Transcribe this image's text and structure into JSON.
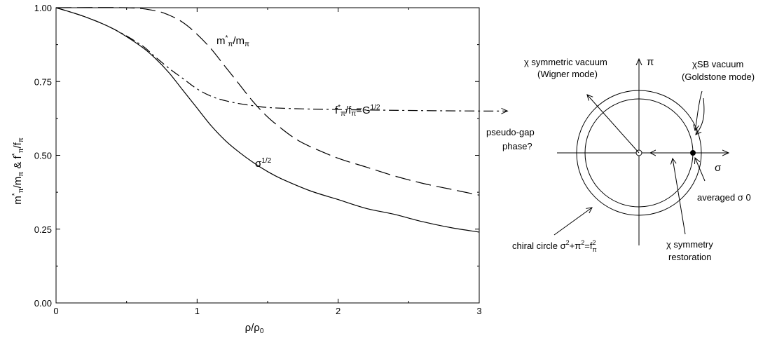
{
  "chart_data": {
    "type": "line",
    "xlabel": "ρ/ρ",
    "xlabel_sub": "0",
    "ylabel": "m*π/mπ & f*π/fπ",
    "xlim": [
      0,
      3
    ],
    "ylim": [
      0,
      1
    ],
    "x_ticks": [
      "0",
      "1",
      "2",
      "3"
    ],
    "y_ticks": [
      "0.00",
      "0.25",
      "0.50",
      "0.75",
      "1.00"
    ],
    "grid": false,
    "series": [
      {
        "name": "m*π/mπ",
        "style": "long-dash",
        "x": [
          0,
          0.5,
          0.7,
          0.8,
          0.9,
          1.0,
          1.1,
          1.2,
          1.3,
          1.4,
          1.5,
          1.6,
          1.7,
          1.8,
          2.0,
          2.2,
          2.4,
          2.6,
          2.8,
          3.0
        ],
        "y": [
          1.0,
          1.0,
          0.99,
          0.975,
          0.95,
          0.91,
          0.86,
          0.8,
          0.74,
          0.68,
          0.63,
          0.59,
          0.555,
          0.53,
          0.49,
          0.46,
          0.43,
          0.405,
          0.385,
          0.365
        ]
      },
      {
        "name": "f*π/fπ=G1/2",
        "style": "dash-dot",
        "x": [
          0,
          0.2,
          0.4,
          0.6,
          0.7,
          0.8,
          0.9,
          1.0,
          1.1,
          1.2,
          1.3,
          1.4,
          1.5,
          1.7,
          2.0,
          2.5,
          3.0,
          3.2
        ],
        "y": [
          1.0,
          0.97,
          0.93,
          0.875,
          0.835,
          0.795,
          0.76,
          0.725,
          0.7,
          0.685,
          0.675,
          0.668,
          0.662,
          0.658,
          0.655,
          0.652,
          0.65,
          0.65
        ]
      },
      {
        "name": "σ1/2",
        "style": "solid",
        "x": [
          0,
          0.2,
          0.4,
          0.6,
          0.7,
          0.8,
          0.9,
          1.0,
          1.1,
          1.2,
          1.3,
          1.4,
          1.5,
          1.6,
          1.8,
          2.0,
          2.2,
          2.4,
          2.6,
          2.8,
          3.0
        ],
        "y": [
          1.0,
          0.97,
          0.93,
          0.87,
          0.83,
          0.78,
          0.72,
          0.66,
          0.6,
          0.55,
          0.51,
          0.475,
          0.445,
          0.42,
          0.38,
          0.35,
          0.32,
          0.3,
          0.275,
          0.255,
          0.24
        ]
      }
    ],
    "annotations": [
      {
        "text": "m*π/mπ"
      },
      {
        "text": "f*π/fπ=G1/2"
      },
      {
        "text": "σ1/2"
      }
    ]
  },
  "diagram": {
    "axis_pi": "π",
    "axis_sigma": "σ",
    "labels": {
      "sym_vacuum_1": "χ symmetric vacuum",
      "sym_vacuum_2": "(Wigner mode)",
      "sb_vacuum_1": "χSB vacuum",
      "sb_vacuum_2": "(Goldstone mode)",
      "pseudo_gap_1": "pseudo-gap",
      "pseudo_gap_2": "phase?",
      "averaged": "averaged σ   0",
      "chiral_circle": "chiral circle σ2+π2=f2π",
      "restoration_1": "χ symmetry",
      "restoration_2": "restoration"
    }
  }
}
